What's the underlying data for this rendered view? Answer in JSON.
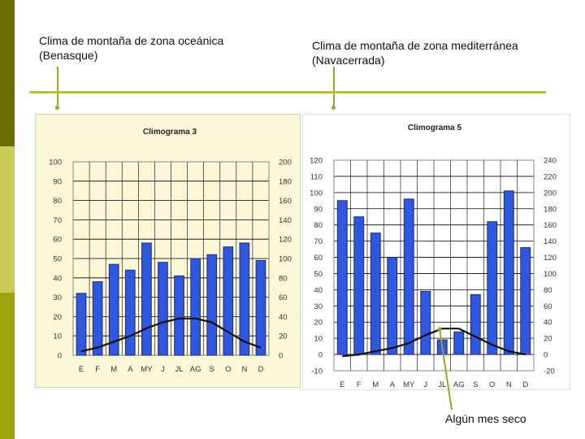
{
  "captions": {
    "left": "Clima de montaña de zona oceánica (Benasque)",
    "right": "Clima de montaña de zona mediterránea (Navacerrada)"
  },
  "annotation": "Algún mes seco",
  "colors": {
    "bar": "#2f57e0",
    "bar_edge": "#1d2c6e",
    "line": "#111111",
    "accent": "#9aa52c"
  },
  "chart_data": [
    {
      "type": "bar",
      "title": "Climograma 3",
      "categories": [
        "E",
        "F",
        "M",
        "A",
        "MY",
        "J",
        "JL",
        "AG",
        "S",
        "O",
        "N",
        "D"
      ],
      "series": [
        {
          "values": [
            32,
            38,
            47,
            44,
            58,
            48,
            41,
            50,
            52,
            56,
            58,
            49
          ]
        },
        {
          "type": "line",
          "axis": "secondary",
          "values": [
            4,
            8,
            14,
            20,
            28,
            34,
            38,
            38,
            34,
            24,
            14,
            8
          ]
        }
      ],
      "ylim": [
        0,
        100
      ],
      "y_ticks": [
        "0",
        "10",
        "20",
        "30",
        "40",
        "50",
        "60",
        "70",
        "80",
        "90",
        "100"
      ],
      "y2lim": [
        0,
        200
      ],
      "y2_ticks": [
        "0",
        "20",
        "40",
        "60",
        "80",
        "100",
        "120",
        "140",
        "160",
        "180",
        "200"
      ],
      "grid": true
    },
    {
      "type": "bar",
      "title": "Climograma 5",
      "categories": [
        "E",
        "F",
        "M",
        "A",
        "MY",
        "J",
        "JL",
        "AG",
        "S",
        "O",
        "N",
        "D"
      ],
      "series": [
        {
          "values": [
            95,
            85,
            75,
            60,
            96,
            39,
            9,
            14,
            37,
            82,
            101,
            66
          ]
        },
        {
          "type": "line",
          "axis": "secondary",
          "values": [
            -2,
            0,
            4,
            8,
            14,
            24,
            32,
            32,
            22,
            12,
            4,
            0
          ]
        }
      ],
      "ylim": [
        -10,
        120
      ],
      "y_ticks": [
        "-10",
        "0",
        "10",
        "20",
        "30",
        "40",
        "50",
        "60",
        "70",
        "80",
        "90",
        "100",
        "110",
        "120"
      ],
      "y2lim": [
        -20,
        240
      ],
      "y2_ticks": [
        "-20",
        "0",
        "20",
        "40",
        "60",
        "80",
        "100",
        "120",
        "140",
        "160",
        "180",
        "200",
        "220",
        "240"
      ],
      "grid": true
    }
  ]
}
